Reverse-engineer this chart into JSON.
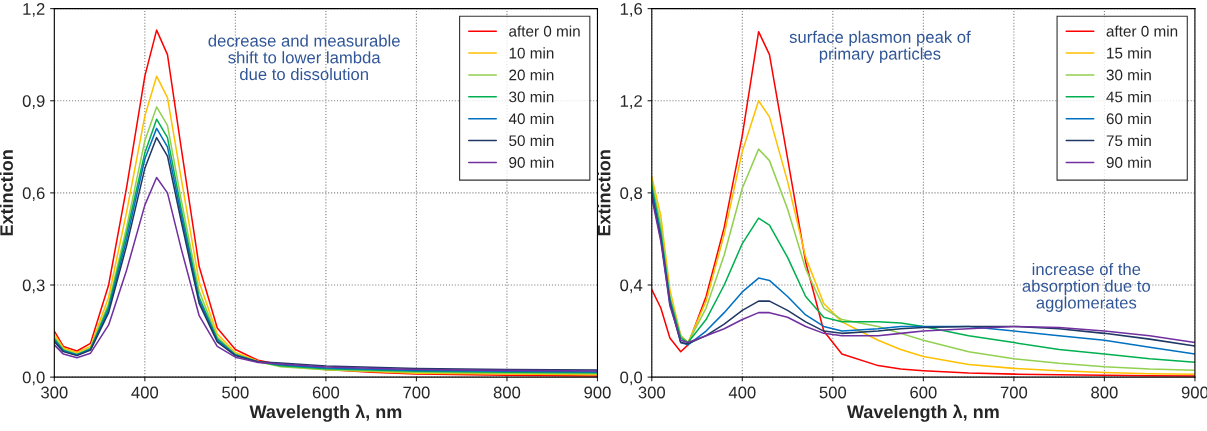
{
  "chart_data": [
    {
      "type": "line",
      "xlabel": "Wavelength λ, nm",
      "ylabel": "Extinction",
      "annotations": [
        "decrease and measurable shift to lower lambda due to dissolution"
      ],
      "x": [
        300,
        310,
        325,
        340,
        360,
        380,
        400,
        413,
        425,
        440,
        460,
        480,
        500,
        525,
        550,
        600,
        650,
        700,
        800,
        900
      ],
      "xlim": [
        300,
        900
      ],
      "xticks": [
        300,
        400,
        500,
        600,
        700,
        800,
        900
      ],
      "ylim": [
        0,
        1.2
      ],
      "yticks": [
        {
          "value": 0,
          "label": "0,0"
        },
        {
          "value": 0.3,
          "label": "0,3"
        },
        {
          "value": 0.6,
          "label": "0,6"
        },
        {
          "value": 0.9,
          "label": "0,9"
        },
        {
          "value": 1.2,
          "label": "1,2"
        }
      ],
      "grid": true,
      "legend": "top right",
      "marker": "none",
      "line_style": "solid",
      "series": [
        {
          "name": "after 0 min",
          "color": "#ff0000",
          "values": [
            0.15,
            0.1,
            0.085,
            0.11,
            0.3,
            0.62,
            0.98,
            1.13,
            1.05,
            0.75,
            0.36,
            0.16,
            0.09,
            0.055,
            0.04,
            0.025,
            0.016,
            0.01,
            0.006,
            0.004
          ]
        },
        {
          "name": "10 min",
          "color": "#ffc000",
          "values": [
            0.14,
            0.095,
            0.08,
            0.1,
            0.26,
            0.54,
            0.85,
            0.98,
            0.91,
            0.65,
            0.31,
            0.14,
            0.08,
            0.052,
            0.036,
            0.024,
            0.018,
            0.013,
            0.01,
            0.008
          ]
        },
        {
          "name": "20 min",
          "color": "#92d050",
          "values": [
            0.13,
            0.09,
            0.075,
            0.095,
            0.24,
            0.49,
            0.77,
            0.88,
            0.82,
            0.58,
            0.28,
            0.13,
            0.075,
            0.05,
            0.034,
            0.024,
            0.02,
            0.016,
            0.013,
            0.011
          ]
        },
        {
          "name": "30 min",
          "color": "#00b050",
          "values": [
            0.125,
            0.088,
            0.073,
            0.092,
            0.23,
            0.47,
            0.73,
            0.84,
            0.78,
            0.55,
            0.26,
            0.125,
            0.073,
            0.05,
            0.037,
            0.027,
            0.023,
            0.019,
            0.016,
            0.014
          ]
        },
        {
          "name": "40 min",
          "color": "#0070c0",
          "values": [
            0.12,
            0.085,
            0.072,
            0.09,
            0.22,
            0.45,
            0.71,
            0.81,
            0.75,
            0.53,
            0.25,
            0.12,
            0.072,
            0.05,
            0.04,
            0.03,
            0.026,
            0.022,
            0.019,
            0.017
          ]
        },
        {
          "name": "50 min",
          "color": "#203864",
          "values": [
            0.115,
            0.083,
            0.07,
            0.088,
            0.21,
            0.43,
            0.68,
            0.78,
            0.72,
            0.51,
            0.24,
            0.115,
            0.07,
            0.05,
            0.046,
            0.036,
            0.032,
            0.028,
            0.025,
            0.023
          ]
        },
        {
          "name": "90 min",
          "color": "#7030a0",
          "values": [
            0.105,
            0.075,
            0.063,
            0.078,
            0.17,
            0.35,
            0.56,
            0.65,
            0.6,
            0.42,
            0.2,
            0.1,
            0.065,
            0.048,
            0.043,
            0.033,
            0.029,
            0.025,
            0.022,
            0.02
          ]
        }
      ]
    },
    {
      "type": "line",
      "xlabel": "Wavelength λ, nm",
      "ylabel": "Extinction",
      "annotations": [
        "surface plasmon peak of primary particles",
        "increase of the absorption due to agglomerates"
      ],
      "x": [
        300,
        310,
        320,
        332,
        340,
        360,
        380,
        400,
        418,
        430,
        450,
        470,
        490,
        510,
        550,
        575,
        600,
        650,
        700,
        750,
        800,
        850,
        900
      ],
      "xlim": [
        300,
        900
      ],
      "xticks": [
        300,
        400,
        500,
        600,
        700,
        800,
        900
      ],
      "ylim": [
        0,
        1.6
      ],
      "yticks": [
        {
          "value": 0,
          "label": "0,0"
        },
        {
          "value": 0.4,
          "label": "0,4"
        },
        {
          "value": 0.8,
          "label": "0,8"
        },
        {
          "value": 1.2,
          "label": "1,2"
        },
        {
          "value": 1.6,
          "label": "1,6"
        }
      ],
      "grid": true,
      "legend": "top right",
      "marker": "none",
      "line_style": "solid",
      "series": [
        {
          "name": "after 0 min",
          "color": "#ff0000",
          "values": [
            0.38,
            0.3,
            0.17,
            0.11,
            0.14,
            0.35,
            0.65,
            1.05,
            1.5,
            1.4,
            0.95,
            0.5,
            0.2,
            0.1,
            0.05,
            0.035,
            0.028,
            0.018,
            0.013,
            0.01,
            0.008,
            0.006,
            0.005
          ]
        },
        {
          "name": "15 min",
          "color": "#ffc000",
          "values": [
            0.87,
            0.7,
            0.38,
            0.18,
            0.15,
            0.33,
            0.62,
            0.98,
            1.2,
            1.13,
            0.85,
            0.52,
            0.32,
            0.24,
            0.16,
            0.12,
            0.09,
            0.055,
            0.038,
            0.028,
            0.02,
            0.015,
            0.012
          ]
        },
        {
          "name": "30 min",
          "color": "#92d050",
          "values": [
            0.85,
            0.66,
            0.35,
            0.18,
            0.15,
            0.3,
            0.53,
            0.82,
            0.99,
            0.94,
            0.73,
            0.47,
            0.3,
            0.25,
            0.22,
            0.19,
            0.16,
            0.11,
            0.08,
            0.06,
            0.045,
            0.035,
            0.03
          ]
        },
        {
          "name": "45 min",
          "color": "#00b050",
          "values": [
            0.83,
            0.63,
            0.34,
            0.17,
            0.15,
            0.25,
            0.4,
            0.58,
            0.69,
            0.66,
            0.52,
            0.35,
            0.26,
            0.24,
            0.24,
            0.235,
            0.22,
            0.18,
            0.15,
            0.12,
            0.1,
            0.08,
            0.065
          ]
        },
        {
          "name": "60 min",
          "color": "#0070c0",
          "values": [
            0.81,
            0.61,
            0.33,
            0.15,
            0.14,
            0.2,
            0.28,
            0.37,
            0.43,
            0.42,
            0.35,
            0.27,
            0.22,
            0.2,
            0.21,
            0.22,
            0.22,
            0.22,
            0.2,
            0.18,
            0.16,
            0.13,
            0.1
          ]
        },
        {
          "name": "75 min",
          "color": "#203864",
          "values": [
            0.79,
            0.6,
            0.32,
            0.15,
            0.145,
            0.18,
            0.23,
            0.29,
            0.33,
            0.33,
            0.29,
            0.24,
            0.2,
            0.19,
            0.2,
            0.21,
            0.215,
            0.22,
            0.22,
            0.21,
            0.19,
            0.165,
            0.135
          ]
        },
        {
          "name": "90 min",
          "color": "#7030a0",
          "values": [
            0.78,
            0.59,
            0.31,
            0.16,
            0.15,
            0.18,
            0.21,
            0.25,
            0.28,
            0.28,
            0.26,
            0.22,
            0.19,
            0.18,
            0.18,
            0.19,
            0.2,
            0.21,
            0.22,
            0.215,
            0.2,
            0.18,
            0.15
          ]
        }
      ]
    }
  ]
}
